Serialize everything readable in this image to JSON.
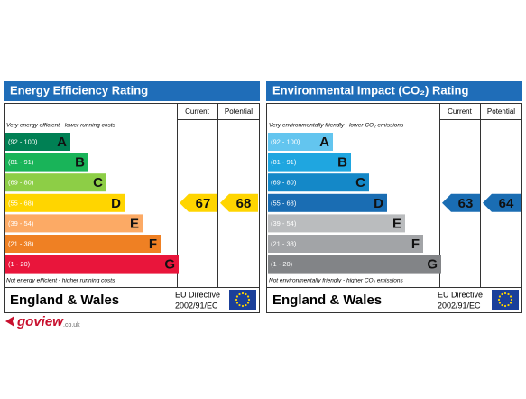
{
  "panels": [
    {
      "title": "Energy Efficiency Rating",
      "columns": [
        "Current",
        "Potential"
      ],
      "note_top": "Very energy efficient - lower running costs",
      "note_bottom": "Not energy efficient - higher running costs",
      "bands": [
        {
          "range": "(92 - 100)",
          "letter": "A",
          "color": "#008054"
        },
        {
          "range": "(81 - 91)",
          "letter": "B",
          "color": "#19b459"
        },
        {
          "range": "(69 - 80)",
          "letter": "C",
          "color": "#8dce46"
        },
        {
          "range": "(55 - 68)",
          "letter": "D",
          "color": "#ffd500"
        },
        {
          "range": "(39 - 54)",
          "letter": "E",
          "color": "#fcaa65"
        },
        {
          "range": "(21 - 38)",
          "letter": "F",
          "color": "#ef8023"
        },
        {
          "range": "(1 - 20)",
          "letter": "G",
          "color": "#e9153b"
        }
      ],
      "current": 67,
      "potential": 68,
      "region": "England & Wales",
      "directive": [
        "EU Directive",
        "2002/91/EC"
      ]
    },
    {
      "title": "Environmental Impact (CO₂) Rating",
      "columns": [
        "Current",
        "Potential"
      ],
      "note_top": "Very environmentally friendly - lower CO₂ emissions",
      "note_bottom": "Not environmentally friendly - higher CO₂ emissions",
      "bands": [
        {
          "range": "(92 - 100)",
          "letter": "A",
          "color": "#63c5ef"
        },
        {
          "range": "(81 - 91)",
          "letter": "B",
          "color": "#1fa6e0"
        },
        {
          "range": "(69 - 80)",
          "letter": "C",
          "color": "#1488c8"
        },
        {
          "range": "(55 - 68)",
          "letter": "D",
          "color": "#1a6db3"
        },
        {
          "range": "(39 - 54)",
          "letter": "E",
          "color": "#babcbe"
        },
        {
          "range": "(21 - 38)",
          "letter": "F",
          "color": "#a2a4a7"
        },
        {
          "range": "(1 - 20)",
          "letter": "G",
          "color": "#828487"
        }
      ],
      "current": 63,
      "potential": 64,
      "region": "England & Wales",
      "directive": [
        "EU Directive",
        "2002/91/EC"
      ]
    }
  ],
  "logo": {
    "brand": "goview",
    "suffix": ".co.uk"
  }
}
